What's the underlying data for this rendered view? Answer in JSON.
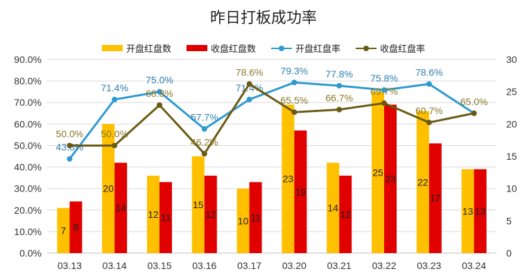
{
  "chart_data": {
    "type": "bar",
    "title": "昨日打板成功率",
    "categories": [
      "03.13",
      "03.14",
      "03.15",
      "03.16",
      "03.17",
      "03.20",
      "03.21",
      "03.22",
      "03.23",
      "03.24"
    ],
    "series": [
      {
        "name": "开盘红盘数",
        "kind": "bar",
        "axis": "right",
        "color": "#FFC000",
        "values": [
          7,
          20,
          12,
          15,
          10,
          23,
          14,
          25,
          22,
          13
        ]
      },
      {
        "name": "收盘红盘数",
        "kind": "bar",
        "axis": "right",
        "color": "#E00000",
        "values": [
          8,
          14,
          11,
          12,
          11,
          19,
          12,
          23,
          17,
          13
        ]
      },
      {
        "name": "开盘红盘率",
        "kind": "line",
        "axis": "left",
        "color": "#2E9AD0",
        "label_color": "#2F7FB0",
        "values": [
          43.8,
          71.4,
          75.0,
          57.7,
          71.4,
          79.3,
          77.8,
          75.8,
          78.6,
          65.0
        ]
      },
      {
        "name": "收盘红盘率",
        "kind": "line",
        "axis": "left",
        "color": "#6B5A14",
        "label_color": "#8A7A2A",
        "values": [
          50.0,
          50.0,
          68.8,
          46.2,
          78.6,
          65.5,
          66.7,
          69.7,
          60.7,
          65.0
        ]
      }
    ],
    "y_left": {
      "min": 0,
      "max": 90,
      "step": 10,
      "ticks": [
        "0.0%",
        "10.0%",
        "20.0%",
        "30.0%",
        "40.0%",
        "50.0%",
        "60.0%",
        "70.0%",
        "80.0%",
        "90.0%"
      ]
    },
    "y_right": {
      "min": 0,
      "max": 30,
      "step": 5,
      "ticks": [
        "0",
        "5",
        "10",
        "15",
        "20",
        "25",
        "30"
      ]
    },
    "bar_labels": {
      "开盘红盘数": [
        "7",
        "20",
        "12",
        "15",
        "10",
        "23",
        "14",
        "25",
        "22",
        "13"
      ],
      "收盘红盘数": [
        "8",
        "14",
        "11",
        "12",
        "11",
        "19",
        "12",
        "23",
        "17",
        "13"
      ]
    },
    "rate_labels": {
      "开盘红盘率": [
        "43.8%",
        "71.4%",
        "75.0%",
        "57.7%",
        "71.4%",
        "79.3%",
        "77.8%",
        "75.8%",
        "78.6%",
        ""
      ],
      "收盘红盘率": [
        "50.0%",
        "50.0%",
        "68.8%",
        "46.2%",
        "78.6%",
        "65.5%",
        "66.7%",
        "69.7%",
        "60.7%",
        "65.0%"
      ]
    },
    "grid": true,
    "legend_position": "top-center"
  }
}
